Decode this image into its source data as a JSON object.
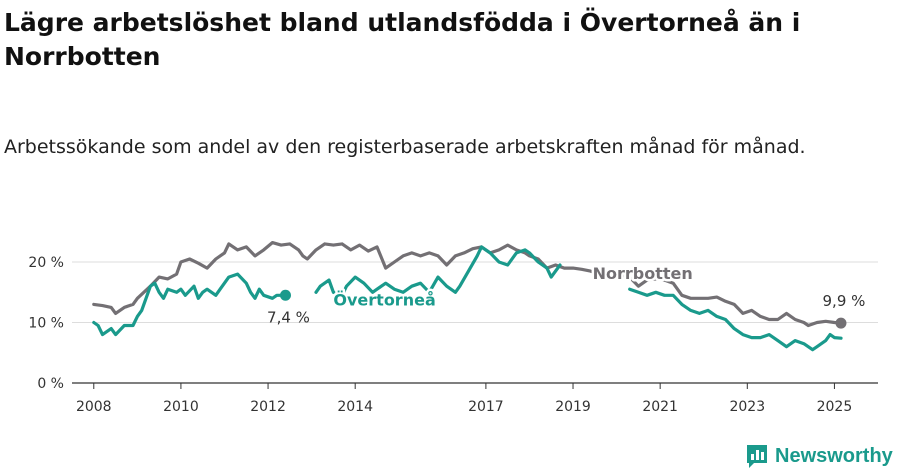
{
  "title": "Lägre arbetslöshet bland utlandsfödda i Övertorneå än i Norrbotten",
  "subtitle": "Arbetssökande som andel av den registerbaserade arbetskraften månad för månad.",
  "brand": {
    "name": "Newsworthy"
  },
  "chart_data": {
    "type": "line",
    "ylim": [
      0,
      25
    ],
    "xlim": [
      2007.5,
      2026
    ],
    "y_ticks": [
      0,
      10,
      20
    ],
    "y_tick_labels": [
      "0 %",
      "10 %",
      "20 %"
    ],
    "x_ticks": [
      2008,
      2010,
      2012,
      2014,
      2017,
      2019,
      2021,
      2023,
      2025
    ],
    "x_tick_labels": [
      "2008",
      "2010",
      "2012",
      "2014",
      "2017",
      "2019",
      "2021",
      "2023",
      "2025"
    ],
    "grid": "horizontal",
    "series": [
      {
        "name": "Norrbotten",
        "color": "#737074",
        "end_label": "9,9 %",
        "points": [
          [
            2008.0,
            13.0
          ],
          [
            2008.2,
            12.8
          ],
          [
            2008.4,
            12.5
          ],
          [
            2008.5,
            11.5
          ],
          [
            2008.7,
            12.5
          ],
          [
            2008.9,
            13.0
          ],
          [
            2009.0,
            14.0
          ],
          [
            2009.3,
            16.0
          ],
          [
            2009.5,
            17.5
          ],
          [
            2009.7,
            17.2
          ],
          [
            2009.9,
            18.0
          ],
          [
            2010.0,
            20.0
          ],
          [
            2010.2,
            20.5
          ],
          [
            2010.4,
            19.8
          ],
          [
            2010.6,
            19.0
          ],
          [
            2010.8,
            20.5
          ],
          [
            2011.0,
            21.5
          ],
          [
            2011.1,
            23.0
          ],
          [
            2011.3,
            22.0
          ],
          [
            2011.5,
            22.5
          ],
          [
            2011.7,
            21.0
          ],
          [
            2011.9,
            22.0
          ],
          [
            2012.1,
            23.2
          ],
          [
            2012.3,
            22.8
          ],
          [
            2012.5,
            23.0
          ],
          [
            2012.7,
            22.0
          ],
          [
            2012.8,
            21.0
          ],
          [
            2012.9,
            20.5
          ],
          [
            2013.1,
            22.0
          ],
          [
            2013.3,
            23.0
          ],
          [
            2013.5,
            22.8
          ],
          [
            2013.7,
            23.0
          ],
          [
            2013.9,
            22.0
          ],
          [
            2014.1,
            22.8
          ],
          [
            2014.3,
            21.8
          ],
          [
            2014.5,
            22.5
          ],
          [
            2014.7,
            19.0
          ],
          [
            2014.9,
            20.0
          ],
          [
            2015.1,
            21.0
          ],
          [
            2015.3,
            21.5
          ],
          [
            2015.5,
            21.0
          ],
          [
            2015.7,
            21.5
          ],
          [
            2015.9,
            21.0
          ],
          [
            2016.1,
            19.5
          ],
          [
            2016.3,
            21.0
          ],
          [
            2016.5,
            21.5
          ],
          [
            2016.7,
            22.2
          ],
          [
            2016.9,
            22.5
          ],
          [
            2017.1,
            21.5
          ],
          [
            2017.3,
            22.0
          ],
          [
            2017.5,
            22.8
          ],
          [
            2017.7,
            22.0
          ],
          [
            2017.9,
            21.5
          ],
          [
            2018.0,
            21.0
          ],
          [
            2018.2,
            20.5
          ],
          [
            2018.4,
            19.0
          ],
          [
            2018.6,
            19.5
          ],
          [
            2018.8,
            19.0
          ],
          [
            2019.0,
            19.0
          ],
          [
            2019.2,
            18.8
          ],
          [
            2019.4,
            18.5
          ],
          [
            2019.6,
            18.0
          ],
          [
            2019.8,
            17.5
          ],
          [
            2020.0,
            18.0
          ],
          [
            2020.3,
            17.5
          ],
          [
            2020.5,
            16.0
          ],
          [
            2020.7,
            17.0
          ],
          [
            2020.9,
            17.2
          ],
          [
            2021.1,
            17.0
          ],
          [
            2021.3,
            16.5
          ],
          [
            2021.5,
            14.5
          ],
          [
            2021.7,
            14.0
          ],
          [
            2021.9,
            14.0
          ],
          [
            2022.1,
            14.0
          ],
          [
            2022.3,
            14.2
          ],
          [
            2022.5,
            13.5
          ],
          [
            2022.7,
            13.0
          ],
          [
            2022.9,
            11.5
          ],
          [
            2023.1,
            12.0
          ],
          [
            2023.3,
            11.0
          ],
          [
            2023.5,
            10.5
          ],
          [
            2023.7,
            10.5
          ],
          [
            2023.9,
            11.5
          ],
          [
            2024.1,
            10.5
          ],
          [
            2024.3,
            10.0
          ],
          [
            2024.4,
            9.5
          ],
          [
            2024.6,
            10.0
          ],
          [
            2024.8,
            10.2
          ],
          [
            2025.0,
            10.0
          ],
          [
            2025.15,
            9.9
          ]
        ]
      },
      {
        "name": "Övertorneå",
        "color": "#1a9a8c",
        "end_label": "7,4 %",
        "points": [
          [
            2008.0,
            10.0
          ],
          [
            2008.1,
            9.5
          ],
          [
            2008.2,
            8.0
          ],
          [
            2008.4,
            9.0
          ],
          [
            2008.5,
            8.0
          ],
          [
            2008.7,
            9.5
          ],
          [
            2008.9,
            9.5
          ],
          [
            2009.0,
            11.0
          ],
          [
            2009.1,
            12.0
          ],
          [
            2009.3,
            16.0
          ],
          [
            2009.4,
            16.5
          ],
          [
            2009.5,
            15.0
          ],
          [
            2009.6,
            14.0
          ],
          [
            2009.7,
            15.5
          ],
          [
            2009.9,
            15.0
          ],
          [
            2010.0,
            15.5
          ],
          [
            2010.1,
            14.5
          ],
          [
            2010.3,
            16.0
          ],
          [
            2010.4,
            14.0
          ],
          [
            2010.5,
            15.0
          ],
          [
            2010.6,
            15.5
          ],
          [
            2010.8,
            14.5
          ],
          [
            2010.9,
            15.5
          ],
          [
            2011.1,
            17.5
          ],
          [
            2011.3,
            18.0
          ],
          [
            2011.5,
            16.5
          ],
          [
            2011.6,
            15.0
          ],
          [
            2011.7,
            14.0
          ],
          [
            2011.8,
            15.5
          ],
          [
            2011.9,
            14.5
          ],
          [
            2012.1,
            14.0
          ],
          [
            2012.2,
            14.5
          ],
          [
            2012.4,
            14.5
          ]
        ]
      },
      {
        "name": "Övertorneå",
        "color": "#1a9a8c",
        "end_label": "",
        "points": [
          [
            2013.1,
            15.0
          ],
          [
            2013.2,
            16.0
          ],
          [
            2013.4,
            17.0
          ],
          [
            2013.5,
            15.0
          ],
          [
            2013.7,
            14.5
          ],
          [
            2013.8,
            16.0
          ],
          [
            2014.0,
            17.5
          ],
          [
            2014.2,
            16.5
          ],
          [
            2014.4,
            15.0
          ],
          [
            2014.5,
            15.5
          ],
          [
            2014.7,
            16.5
          ],
          [
            2014.9,
            15.5
          ],
          [
            2015.1,
            15.0
          ],
          [
            2015.3,
            16.0
          ],
          [
            2015.5,
            16.5
          ],
          [
            2015.7,
            15.0
          ],
          [
            2015.9,
            17.5
          ],
          [
            2016.1,
            16.0
          ],
          [
            2016.3,
            15.0
          ],
          [
            2016.4,
            16.0
          ],
          [
            2016.6,
            18.5
          ],
          [
            2016.8,
            21.0
          ],
          [
            2016.9,
            22.5
          ],
          [
            2017.1,
            21.5
          ],
          [
            2017.3,
            20.0
          ],
          [
            2017.5,
            19.5
          ],
          [
            2017.7,
            21.5
          ],
          [
            2017.9,
            22.0
          ],
          [
            2018.0,
            21.5
          ],
          [
            2018.2,
            20.0
          ],
          [
            2018.4,
            19.0
          ],
          [
            2018.5,
            17.5
          ],
          [
            2018.7,
            19.5
          ]
        ]
      },
      {
        "name": "Övertorneå",
        "color": "#1a9a8c",
        "end_label": "",
        "points": [
          [
            2020.3,
            15.5
          ],
          [
            2020.5,
            15.0
          ],
          [
            2020.7,
            14.5
          ],
          [
            2020.9,
            15.0
          ],
          [
            2021.1,
            14.5
          ],
          [
            2021.3,
            14.5
          ],
          [
            2021.5,
            13.0
          ],
          [
            2021.7,
            12.0
          ],
          [
            2021.9,
            11.5
          ],
          [
            2022.1,
            12.0
          ],
          [
            2022.3,
            11.0
          ],
          [
            2022.5,
            10.5
          ],
          [
            2022.7,
            9.0
          ],
          [
            2022.9,
            8.0
          ],
          [
            2023.1,
            7.5
          ],
          [
            2023.3,
            7.5
          ],
          [
            2023.5,
            8.0
          ],
          [
            2023.7,
            7.0
          ],
          [
            2023.9,
            6.0
          ],
          [
            2024.1,
            7.0
          ],
          [
            2024.3,
            6.5
          ],
          [
            2024.5,
            5.5
          ],
          [
            2024.6,
            6.0
          ],
          [
            2024.8,
            7.0
          ],
          [
            2024.9,
            8.0
          ],
          [
            2025.0,
            7.5
          ],
          [
            2025.15,
            7.4
          ]
        ]
      }
    ],
    "annotations": [
      {
        "text": "Norrbotten",
        "x": 2019.45,
        "y": 17.2,
        "color": "#737074"
      },
      {
        "text": "Övertorneå",
        "x": 2013.5,
        "y": 12.8,
        "color": "#1a9a8c"
      }
    ]
  }
}
